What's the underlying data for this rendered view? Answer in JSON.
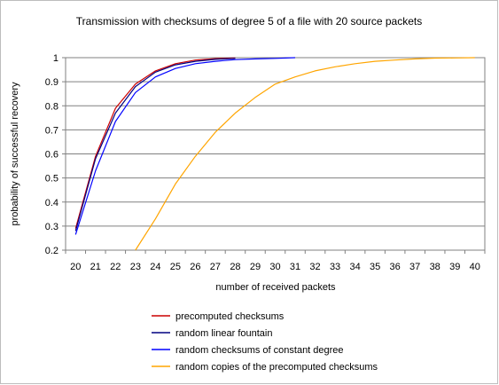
{
  "chart_data": {
    "type": "line",
    "title": "Transmission with checksums of degree 5 of a file with 20 source packets",
    "xlabel": "number of received packets",
    "ylabel": "probability of successful recovery",
    "x": [
      20,
      21,
      22,
      23,
      24,
      25,
      26,
      27,
      28,
      29,
      30,
      31,
      32,
      33,
      34,
      35,
      36,
      37,
      38,
      39,
      40
    ],
    "x_ticks": [
      "20",
      "21",
      "22",
      "23",
      "24",
      "25",
      "26",
      "27",
      "28",
      "29",
      "30",
      "31",
      "32",
      "33",
      "34",
      "35",
      "36",
      "37",
      "38",
      "39",
      "40"
    ],
    "y_ticks": [
      "0.2",
      "0.3",
      "0.4",
      "0.5",
      "0.6",
      "0.7",
      "0.8",
      "0.9",
      "1"
    ],
    "xlim": [
      20,
      40
    ],
    "ylim": [
      0.2,
      1.0
    ],
    "grid": "horizontal",
    "legend": "bottom",
    "series": [
      {
        "name": "precomputed checksums",
        "color": "#cc0000",
        "x": [
          20,
          21,
          22,
          23,
          24,
          25,
          26,
          27,
          28
        ],
        "values": [
          0.29,
          0.59,
          0.79,
          0.89,
          0.945,
          0.975,
          0.99,
          0.996,
          0.999
        ]
      },
      {
        "name": "random linear fountain",
        "color": "#000080",
        "x": [
          20,
          21,
          22,
          23,
          24,
          25,
          26,
          27,
          28
        ],
        "values": [
          0.28,
          0.58,
          0.77,
          0.88,
          0.94,
          0.97,
          0.985,
          0.993,
          0.997
        ]
      },
      {
        "name": "random checksums of constant degree",
        "color": "#0000ff",
        "x": [
          20,
          21,
          22,
          23,
          24,
          25,
          26,
          27,
          28,
          29,
          30,
          31
        ],
        "values": [
          0.265,
          0.53,
          0.735,
          0.855,
          0.92,
          0.955,
          0.975,
          0.985,
          0.992,
          0.995,
          0.997,
          1.0
        ]
      },
      {
        "name": "random copies of the precomputed checksums",
        "color": "#ffa500",
        "x": [
          23,
          24,
          25,
          26,
          27,
          28,
          29,
          30,
          31,
          32,
          33,
          34,
          35,
          36,
          37,
          38,
          39,
          40
        ],
        "values": [
          0.2,
          0.33,
          0.475,
          0.59,
          0.69,
          0.77,
          0.835,
          0.89,
          0.92,
          0.945,
          0.962,
          0.975,
          0.985,
          0.99,
          0.995,
          0.998,
          0.999,
          1.0
        ]
      }
    ]
  }
}
